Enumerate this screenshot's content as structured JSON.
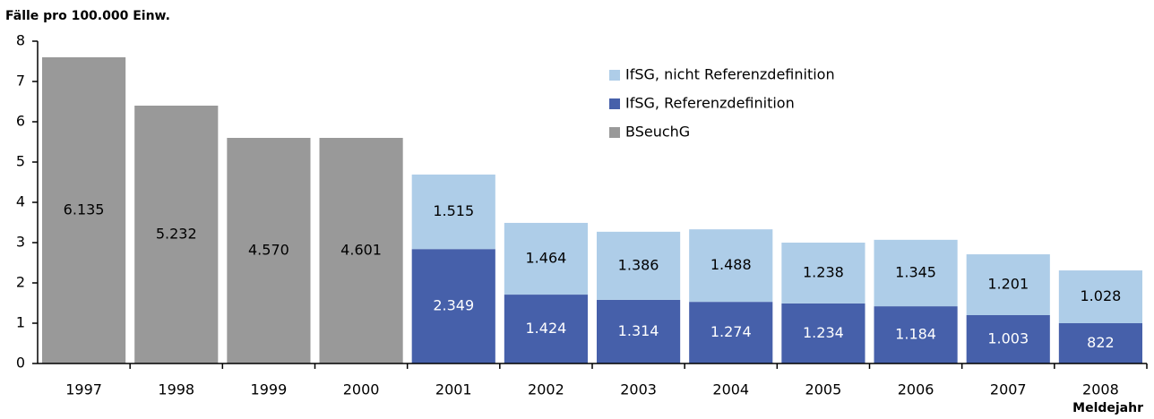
{
  "chart_data": {
    "type": "stacked_bar",
    "y_label": "Fälle pro 100.000 Einw.",
    "x_label": "Meldejahr",
    "categories": [
      "1997",
      "1998",
      "1999",
      "2000",
      "2001",
      "2002",
      "2003",
      "2004",
      "2005",
      "2006",
      "2007",
      "2008"
    ],
    "series": [
      {
        "name": "BSeuchG",
        "color": "#999999",
        "text_color": "#000000",
        "values": [
          7.6,
          6.4,
          5.6,
          5.6,
          null,
          null,
          null,
          null,
          null,
          null,
          null,
          null
        ],
        "labels": [
          "6.135",
          "5.232",
          "4.570",
          "4.601",
          null,
          null,
          null,
          null,
          null,
          null,
          null,
          null
        ]
      },
      {
        "name": "IfSG, Referenzdefinition",
        "color": "#4660aa",
        "text_color": "#ffffff",
        "values": [
          null,
          null,
          null,
          null,
          2.84,
          1.71,
          1.58,
          1.53,
          1.49,
          1.42,
          1.2,
          1.0
        ],
        "labels": [
          null,
          null,
          null,
          null,
          "2.349",
          "1.424",
          "1.314",
          "1.274",
          "1.234",
          "1.184",
          "1.003",
          "822"
        ]
      },
      {
        "name": "IfSG, nicht Referenzdefinition",
        "color": "#aecde8",
        "text_color": "#000000",
        "values": [
          null,
          null,
          null,
          null,
          1.85,
          1.78,
          1.69,
          1.8,
          1.51,
          1.65,
          1.51,
          1.31
        ],
        "labels": [
          null,
          null,
          null,
          null,
          "1.515",
          "1.464",
          "1.386",
          "1.488",
          "1.238",
          "1.345",
          "1.201",
          "1.028"
        ]
      }
    ],
    "ylim": [
      0,
      8
    ],
    "yticks": [
      0,
      1,
      2,
      3,
      4,
      5,
      6,
      7,
      8
    ],
    "grid": false,
    "legend": "top-right"
  }
}
